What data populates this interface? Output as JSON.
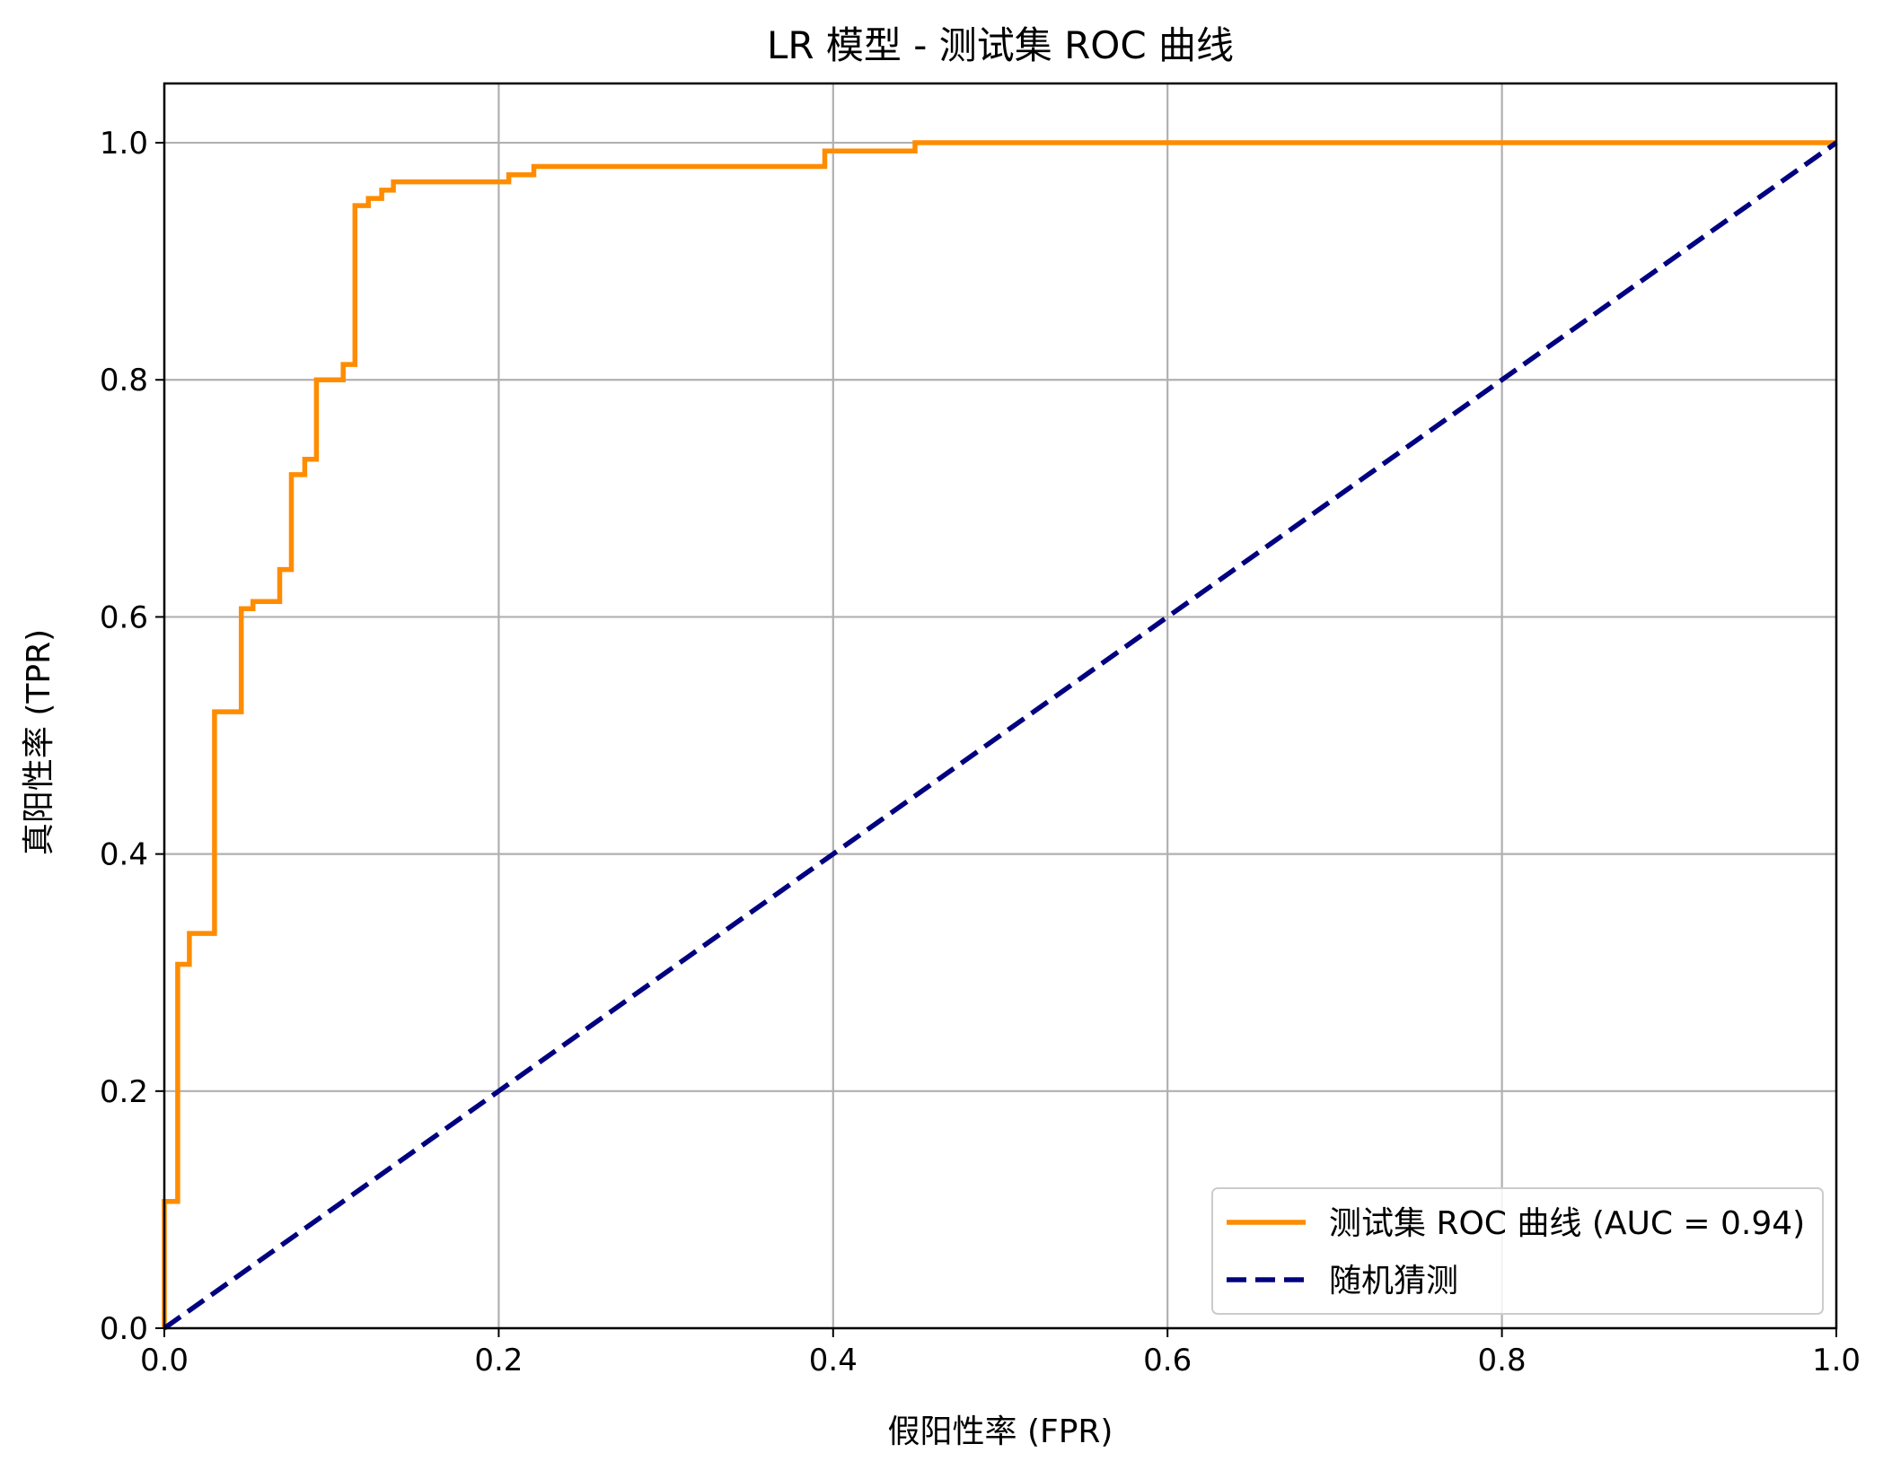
{
  "chart_data": {
    "type": "line",
    "title": "LR 模型 - 测试集 ROC 曲线",
    "xlabel": "假阳性率 (FPR)",
    "ylabel": "真阳性率 (TPR)",
    "xlim": [
      0.0,
      1.0
    ],
    "ylim": [
      0.0,
      1.05
    ],
    "xticks": [
      0.0,
      0.2,
      0.4,
      0.6,
      0.8,
      1.0
    ],
    "yticks": [
      0.0,
      0.2,
      0.4,
      0.6,
      0.8,
      1.0
    ],
    "xtick_labels": [
      "0.0",
      "0.2",
      "0.4",
      "0.6",
      "0.8",
      "1.0"
    ],
    "ytick_labels": [
      "0.0",
      "0.2",
      "0.4",
      "0.6",
      "0.8",
      "1.0"
    ],
    "grid": true,
    "legend_position": "bottom-right",
    "series": [
      {
        "name": "测试集 ROC 曲线 (AUC = 0.94)",
        "color": "#ff8c00",
        "style": "solid",
        "x": [
          0.0,
          0.0,
          0.008,
          0.008,
          0.015,
          0.015,
          0.03,
          0.03,
          0.046,
          0.046,
          0.053,
          0.053,
          0.069,
          0.069,
          0.076,
          0.076,
          0.084,
          0.084,
          0.091,
          0.091,
          0.107,
          0.107,
          0.114,
          0.114,
          0.122,
          0.122,
          0.13,
          0.13,
          0.137,
          0.137,
          0.206,
          0.206,
          0.221,
          0.221,
          0.395,
          0.395,
          0.449,
          0.449,
          1.0
        ],
        "y": [
          0.0,
          0.107,
          0.107,
          0.307,
          0.307,
          0.333,
          0.333,
          0.52,
          0.52,
          0.607,
          0.607,
          0.613,
          0.613,
          0.64,
          0.64,
          0.72,
          0.72,
          0.733,
          0.733,
          0.8,
          0.8,
          0.813,
          0.813,
          0.947,
          0.947,
          0.953,
          0.953,
          0.96,
          0.96,
          0.967,
          0.967,
          0.973,
          0.973,
          0.98,
          0.98,
          0.993,
          0.993,
          1.0,
          1.0
        ]
      },
      {
        "name": "随机猜测",
        "color": "#000080",
        "style": "dashed",
        "x": [
          0.0,
          1.0
        ],
        "y": [
          0.0,
          1.0
        ]
      }
    ]
  }
}
